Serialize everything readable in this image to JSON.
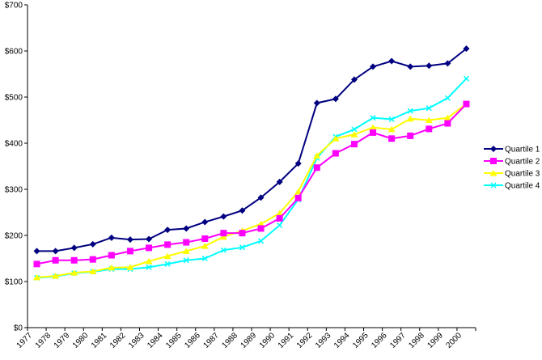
{
  "chart_data": {
    "type": "line",
    "title": "",
    "xlabel": "",
    "ylabel": "",
    "ylim": [
      0,
      700
    ],
    "yticks": [
      "$0",
      "$100",
      "$200",
      "$300",
      "$400",
      "$500",
      "$600",
      "$700"
    ],
    "ytick_values": [
      0,
      100,
      200,
      300,
      400,
      500,
      600,
      700
    ],
    "grid": false,
    "legend_position": "right",
    "categories": [
      "1977",
      "1978",
      "1979",
      "1980",
      "1981",
      "1982",
      "1983",
      "1984",
      "1985",
      "1986",
      "1987",
      "1988",
      "1989",
      "1990",
      "1991",
      "1992",
      "1993",
      "1994",
      "1995",
      "1996",
      "1997",
      "1998",
      "1999",
      "2000"
    ],
    "series": [
      {
        "name": "Quartile 1",
        "color": "#000080",
        "marker": "diamond",
        "values": [
          166,
          166,
          173,
          181,
          195,
          191,
          192,
          212,
          215,
          229,
          241,
          254,
          282,
          316,
          356,
          487,
          496,
          538,
          566,
          578,
          566,
          568,
          573,
          605
        ]
      },
      {
        "name": "Quartile 2",
        "color": "#FF00FF",
        "marker": "square",
        "values": [
          138,
          146,
          146,
          148,
          157,
          166,
          173,
          180,
          185,
          193,
          205,
          205,
          215,
          237,
          281,
          347,
          378,
          398,
          423,
          410,
          416,
          431,
          443,
          485
        ]
      },
      {
        "name": "Quartile 3",
        "color": "#FFFF00",
        "marker": "triangle",
        "values": [
          109,
          112,
          119,
          122,
          130,
          131,
          144,
          155,
          166,
          177,
          197,
          210,
          225,
          248,
          295,
          373,
          410,
          419,
          434,
          430,
          453,
          450,
          455,
          485
        ]
      },
      {
        "name": "Quartile 4",
        "color": "#00FFFF",
        "marker": "x",
        "values": [
          108,
          111,
          118,
          121,
          127,
          127,
          131,
          138,
          146,
          150,
          168,
          174,
          188,
          222,
          278,
          368,
          414,
          430,
          455,
          452,
          470,
          476,
          498,
          540
        ]
      }
    ]
  }
}
